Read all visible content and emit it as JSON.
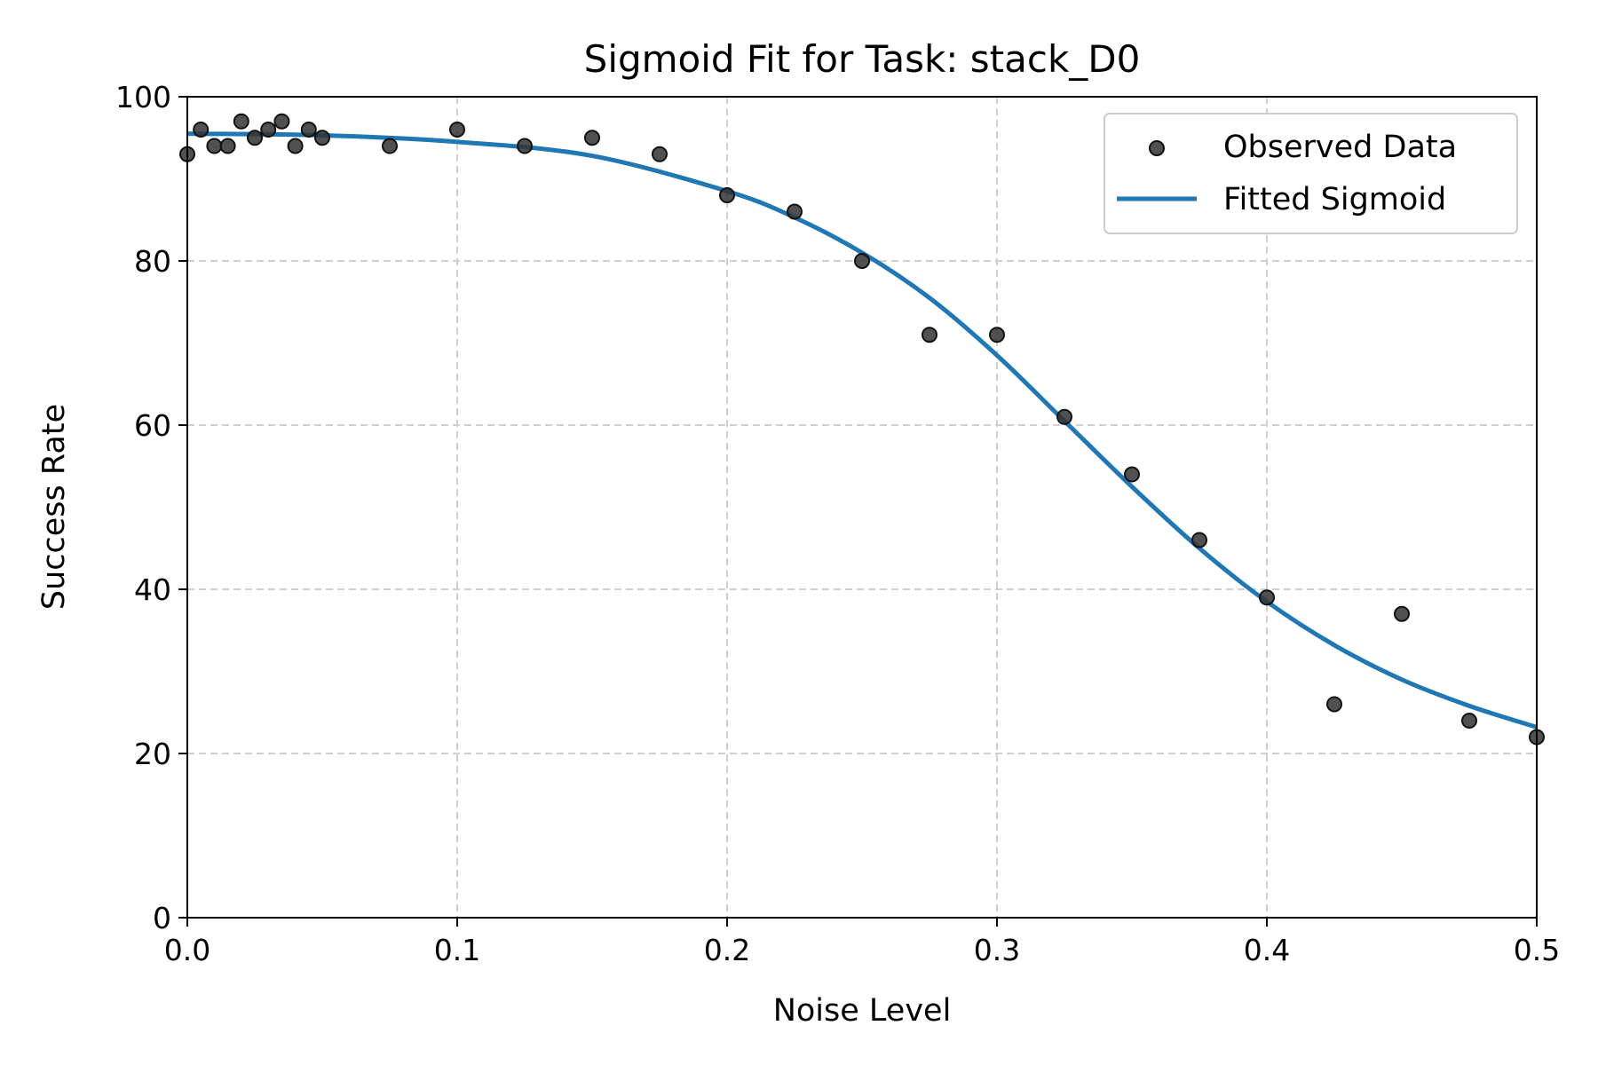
{
  "chart_data": {
    "type": "scatter",
    "title": "Sigmoid Fit for Task: stack_D0",
    "xlabel": "Noise Level",
    "ylabel": "Success Rate",
    "xlim": [
      0.0,
      0.5
    ],
    "ylim": [
      0,
      100
    ],
    "xticks": [
      "0.0",
      "0.1",
      "0.2",
      "0.3",
      "0.4",
      "0.5"
    ],
    "yticks": [
      "0",
      "20",
      "40",
      "60",
      "80",
      "100"
    ],
    "grid": true,
    "legend_position": "top-right",
    "series": [
      {
        "name": "Observed Data",
        "kind": "scatter",
        "color": "#333333",
        "points": [
          [
            0.0,
            93
          ],
          [
            0.005,
            96
          ],
          [
            0.01,
            94
          ],
          [
            0.015,
            94
          ],
          [
            0.02,
            97
          ],
          [
            0.025,
            95
          ],
          [
            0.03,
            96
          ],
          [
            0.035,
            97
          ],
          [
            0.04,
            94
          ],
          [
            0.045,
            96
          ],
          [
            0.05,
            95
          ],
          [
            0.075,
            94
          ],
          [
            0.1,
            96
          ],
          [
            0.125,
            94
          ],
          [
            0.15,
            95
          ],
          [
            0.175,
            93
          ],
          [
            0.2,
            88
          ],
          [
            0.225,
            86
          ],
          [
            0.25,
            80
          ],
          [
            0.275,
            71
          ],
          [
            0.3,
            71
          ],
          [
            0.325,
            61
          ],
          [
            0.35,
            54
          ],
          [
            0.375,
            46
          ],
          [
            0.4,
            39
          ],
          [
            0.425,
            26
          ],
          [
            0.45,
            37
          ],
          [
            0.475,
            24
          ],
          [
            0.5,
            22
          ]
        ]
      },
      {
        "name": "Fitted Sigmoid",
        "kind": "line",
        "color": "#1f77b4",
        "points": [
          [
            0.0,
            95.5
          ],
          [
            0.05,
            95.3
          ],
          [
            0.1,
            94.5
          ],
          [
            0.15,
            92.8
          ],
          [
            0.2,
            88.5
          ],
          [
            0.225,
            85.3
          ],
          [
            0.25,
            81.0
          ],
          [
            0.275,
            75.5
          ],
          [
            0.3,
            68.5
          ],
          [
            0.325,
            60.5
          ],
          [
            0.35,
            52.5
          ],
          [
            0.375,
            45.0
          ],
          [
            0.4,
            38.5
          ],
          [
            0.425,
            33.2
          ],
          [
            0.45,
            29.0
          ],
          [
            0.475,
            25.8
          ],
          [
            0.5,
            23.2
          ]
        ]
      }
    ]
  }
}
